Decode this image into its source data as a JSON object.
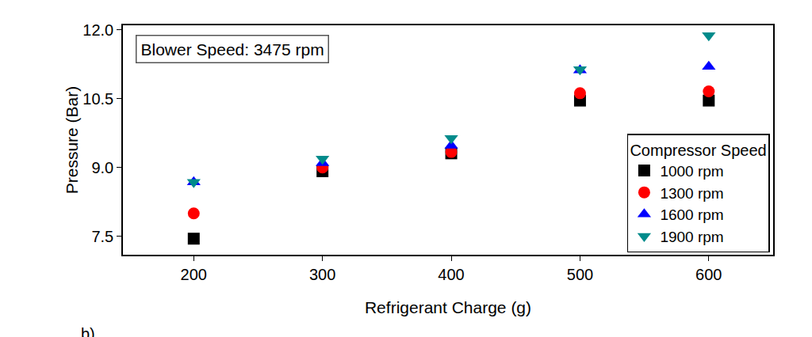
{
  "chart_data": {
    "type": "scatter",
    "x_label": "Refrigerant Charge (g)",
    "y_label": "Pressure (Bar)",
    "annotations": [
      "Blower Speed: 3475 rpm",
      "b)"
    ],
    "legend_title": "Compressor Speed",
    "legend": "lower right",
    "grid": false,
    "x": [
      200,
      300,
      400,
      500,
      600
    ],
    "xlim": [
      145,
      650
    ],
    "xticks": [
      200,
      300,
      400,
      500,
      600
    ],
    "ylim": [
      7.1,
      12.1
    ],
    "yticks": [
      7.5,
      {
        "value": 9,
        "label": "9.0"
      },
      10.5,
      {
        "value": 12,
        "label": "12.0"
      }
    ],
    "series": [
      {
        "name": "1000 rpm",
        "color": "#000000",
        "marker": "square",
        "values": [
          7.45,
          8.92,
          9.31,
          10.46,
          10.46
        ]
      },
      {
        "name": "1300 rpm",
        "color": "#ff0000",
        "marker": "circle",
        "values": [
          8.0,
          9.0,
          9.34,
          10.62,
          10.66
        ]
      },
      {
        "name": "1600 rpm",
        "color": "#0000ff",
        "marker": "triangle-up",
        "values": [
          8.68,
          9.1,
          9.48,
          11.12,
          11.2
        ]
      },
      {
        "name": "1900 rpm",
        "color": "#008b8b",
        "marker": "triangle-down",
        "values": [
          8.68,
          9.19,
          9.64,
          11.14,
          11.88
        ]
      }
    ]
  }
}
